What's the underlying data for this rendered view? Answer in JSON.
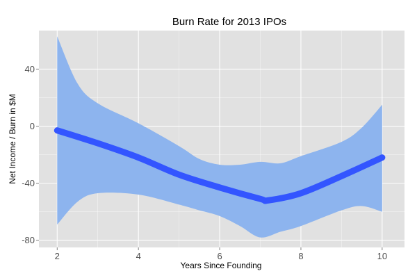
{
  "chart_data": {
    "type": "line",
    "title": "Burn Rate for 2013 IPOs",
    "xlabel": "Years Since Founding",
    "ylabel": "Net Income / Burn in $M",
    "xlim": [
      1.55,
      10.55
    ],
    "ylim": [
      -85,
      67
    ],
    "x_ticks": [
      2,
      4,
      6,
      8,
      10
    ],
    "y_ticks": [
      -80,
      -40,
      0,
      40
    ],
    "x_tick_labels": [
      "2",
      "4",
      "6",
      "8",
      "10"
    ],
    "y_tick_labels": [
      "-80",
      "-40",
      "0",
      "40"
    ],
    "grid": true,
    "legend": "none",
    "series": [
      {
        "x": [
          2,
          3,
          4,
          5,
          6,
          7,
          7.2,
          8,
          9,
          10
        ],
        "y": [
          -3,
          -12,
          -22,
          -34,
          -43,
          -51,
          -52,
          -47,
          -35,
          -22
        ]
      }
    ],
    "confidence_band": {
      "x": [
        2,
        2.5,
        3,
        4,
        5,
        5.5,
        6,
        6.5,
        7,
        7.5,
        8,
        9,
        9.5,
        10
      ],
      "upper": [
        63,
        30,
        16,
        2,
        -14,
        -23,
        -27,
        -27,
        -25,
        -26,
        -21,
        -11,
        -1,
        15
      ],
      "lower": [
        -69,
        -53,
        -47,
        -48,
        -55,
        -59,
        -63,
        -70,
        -78,
        -74,
        -70,
        -59,
        -56,
        -60
      ]
    },
    "colors": {
      "panel": "#e1e1e1",
      "grid": "#ffffff",
      "line": "#3355ff",
      "band": "#8db4ee",
      "tick_text": "#4d4d4d"
    }
  }
}
